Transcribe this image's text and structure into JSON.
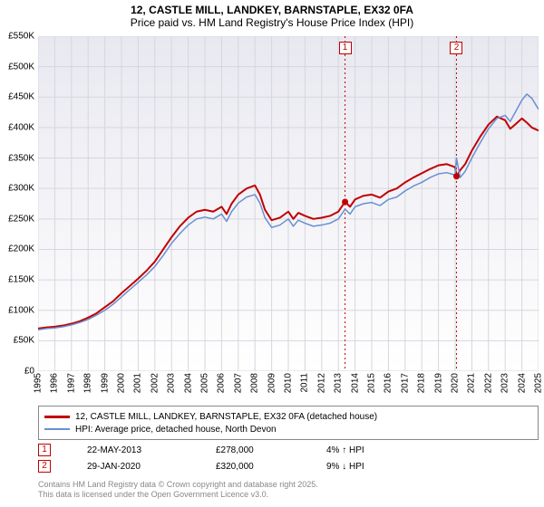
{
  "title": {
    "line1": "12, CASTLE MILL, LANDKEY, BARNSTAPLE, EX32 0FA",
    "line2": "Price paid vs. HM Land Registry's House Price Index (HPI)",
    "fontsize": 12
  },
  "chart": {
    "type": "line",
    "bg_gradient_top": "#e8e8f0",
    "bg_gradient_bottom": "#ffffff",
    "grid_color": "#d6d6de",
    "axis_color": "#000000",
    "ylim": [
      0,
      550
    ],
    "ytick_step": 50,
    "ytick_labels": [
      "£0",
      "£50K",
      "£100K",
      "£150K",
      "£200K",
      "£250K",
      "£300K",
      "£350K",
      "£400K",
      "£450K",
      "£500K",
      "£550K"
    ],
    "x_years": [
      1995,
      1996,
      1997,
      1998,
      1999,
      2000,
      2001,
      2002,
      2003,
      2004,
      2005,
      2006,
      2007,
      2008,
      2009,
      2010,
      2011,
      2012,
      2013,
      2014,
      2015,
      2016,
      2017,
      2018,
      2019,
      2020,
      2021,
      2022,
      2023,
      2024,
      2025
    ],
    "markers": [
      {
        "label": "1",
        "year_frac": 2013.4,
        "line_color": "#c00000"
      },
      {
        "label": "2",
        "year_frac": 2020.08,
        "line_color": "#c00000"
      }
    ],
    "dots": [
      {
        "year_frac": 2013.4,
        "value": 278,
        "color": "#c00000"
      },
      {
        "year_frac": 2020.08,
        "value": 320,
        "color": "#c00000"
      }
    ],
    "series": [
      {
        "name": "price_paid",
        "color": "#c00000",
        "width": 2,
        "points": [
          [
            1995,
            70
          ],
          [
            1995.5,
            72
          ],
          [
            1996,
            73
          ],
          [
            1996.5,
            75
          ],
          [
            1997,
            78
          ],
          [
            1997.5,
            82
          ],
          [
            1998,
            88
          ],
          [
            1998.5,
            95
          ],
          [
            1999,
            105
          ],
          [
            1999.5,
            115
          ],
          [
            2000,
            128
          ],
          [
            2000.5,
            140
          ],
          [
            2001,
            152
          ],
          [
            2001.5,
            165
          ],
          [
            2002,
            180
          ],
          [
            2002.5,
            200
          ],
          [
            2003,
            220
          ],
          [
            2003.5,
            238
          ],
          [
            2004,
            252
          ],
          [
            2004.5,
            262
          ],
          [
            2005,
            265
          ],
          [
            2005.5,
            262
          ],
          [
            2006,
            270
          ],
          [
            2006.3,
            258
          ],
          [
            2006.6,
            275
          ],
          [
            2007,
            290
          ],
          [
            2007.5,
            300
          ],
          [
            2008,
            305
          ],
          [
            2008.3,
            290
          ],
          [
            2008.6,
            265
          ],
          [
            2009,
            248
          ],
          [
            2009.5,
            252
          ],
          [
            2010,
            262
          ],
          [
            2010.3,
            250
          ],
          [
            2010.6,
            260
          ],
          [
            2011,
            255
          ],
          [
            2011.5,
            250
          ],
          [
            2012,
            252
          ],
          [
            2012.5,
            255
          ],
          [
            2013,
            262
          ],
          [
            2013.4,
            278
          ],
          [
            2013.7,
            270
          ],
          [
            2014,
            282
          ],
          [
            2014.5,
            288
          ],
          [
            2015,
            290
          ],
          [
            2015.5,
            285
          ],
          [
            2016,
            295
          ],
          [
            2016.5,
            300
          ],
          [
            2017,
            310
          ],
          [
            2017.5,
            318
          ],
          [
            2018,
            325
          ],
          [
            2018.5,
            332
          ],
          [
            2019,
            338
          ],
          [
            2019.5,
            340
          ],
          [
            2020,
            335
          ],
          [
            2020.08,
            320
          ],
          [
            2020.3,
            330
          ],
          [
            2020.6,
            340
          ],
          [
            2021,
            362
          ],
          [
            2021.5,
            385
          ],
          [
            2022,
            405
          ],
          [
            2022.5,
            418
          ],
          [
            2023,
            412
          ],
          [
            2023.3,
            398
          ],
          [
            2023.6,
            405
          ],
          [
            2024,
            415
          ],
          [
            2024.3,
            408
          ],
          [
            2024.6,
            400
          ],
          [
            2025,
            395
          ]
        ]
      },
      {
        "name": "hpi",
        "color": "#6a8fd0",
        "width": 1.5,
        "points": [
          [
            1995,
            68
          ],
          [
            1995.5,
            70
          ],
          [
            1996,
            71
          ],
          [
            1996.5,
            73
          ],
          [
            1997,
            76
          ],
          [
            1997.5,
            80
          ],
          [
            1998,
            85
          ],
          [
            1998.5,
            92
          ],
          [
            1999,
            100
          ],
          [
            1999.5,
            110
          ],
          [
            2000,
            122
          ],
          [
            2000.5,
            134
          ],
          [
            2001,
            146
          ],
          [
            2001.5,
            158
          ],
          [
            2002,
            172
          ],
          [
            2002.5,
            190
          ],
          [
            2003,
            210
          ],
          [
            2003.5,
            226
          ],
          [
            2004,
            240
          ],
          [
            2004.5,
            250
          ],
          [
            2005,
            253
          ],
          [
            2005.5,
            250
          ],
          [
            2006,
            258
          ],
          [
            2006.3,
            246
          ],
          [
            2006.6,
            262
          ],
          [
            2007,
            276
          ],
          [
            2007.5,
            286
          ],
          [
            2008,
            290
          ],
          [
            2008.3,
            276
          ],
          [
            2008.6,
            252
          ],
          [
            2009,
            236
          ],
          [
            2009.5,
            240
          ],
          [
            2010,
            250
          ],
          [
            2010.3,
            238
          ],
          [
            2010.6,
            248
          ],
          [
            2011,
            243
          ],
          [
            2011.5,
            238
          ],
          [
            2012,
            240
          ],
          [
            2012.5,
            243
          ],
          [
            2013,
            250
          ],
          [
            2013.4,
            266
          ],
          [
            2013.7,
            258
          ],
          [
            2014,
            270
          ],
          [
            2014.5,
            275
          ],
          [
            2015,
            277
          ],
          [
            2015.5,
            272
          ],
          [
            2016,
            282
          ],
          [
            2016.5,
            286
          ],
          [
            2017,
            296
          ],
          [
            2017.5,
            304
          ],
          [
            2018,
            310
          ],
          [
            2018.5,
            318
          ],
          [
            2019,
            324
          ],
          [
            2019.5,
            326
          ],
          [
            2020,
            322
          ],
          [
            2020.08,
            350
          ],
          [
            2020.3,
            318
          ],
          [
            2020.6,
            328
          ],
          [
            2021,
            350
          ],
          [
            2021.5,
            375
          ],
          [
            2022,
            398
          ],
          [
            2022.5,
            415
          ],
          [
            2023,
            420
          ],
          [
            2023.3,
            410
          ],
          [
            2023.6,
            425
          ],
          [
            2024,
            445
          ],
          [
            2024.3,
            455
          ],
          [
            2024.6,
            448
          ],
          [
            2025,
            430
          ]
        ]
      }
    ]
  },
  "legend": {
    "items": [
      {
        "color": "#c00000",
        "width": 3,
        "label": "12, CASTLE MILL, LANDKEY, BARNSTAPLE, EX32 0FA (detached house)"
      },
      {
        "color": "#6a8fd0",
        "width": 2,
        "label": "HPI: Average price, detached house, North Devon"
      }
    ]
  },
  "transactions": [
    {
      "marker": "1",
      "date": "22-MAY-2013",
      "price": "£278,000",
      "change": "4% ↑ HPI"
    },
    {
      "marker": "2",
      "date": "29-JAN-2020",
      "price": "£320,000",
      "change": "9% ↓ HPI"
    }
  ],
  "attribution": {
    "line1": "Contains HM Land Registry data © Crown copyright and database right 2025.",
    "line2": "This data is licensed under the Open Government Licence v3.0."
  }
}
